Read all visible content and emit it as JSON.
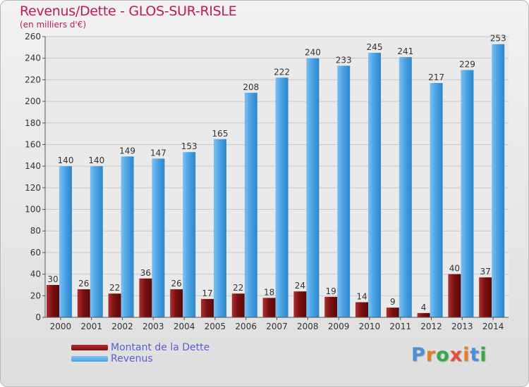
{
  "title": "Revenus/Dette - GLOS-SUR-RISLE",
  "subtitle": "(en milliers d'€)",
  "legend": {
    "debt": "Montant de la Dette",
    "revenue": "Revenus"
  },
  "logo": {
    "text": "Proxiti",
    "letter_colors": [
      "#4a90d9",
      "#e67e22",
      "#3aa84a",
      "#e74c3c",
      "#e67e22",
      "#4a90d9",
      "#3aa84a"
    ]
  },
  "colors": {
    "debt": "#7b1010",
    "debt_light": "#b03030",
    "revenue": "#4aa3e6",
    "revenue_light": "#7dc0f0",
    "label": "#333333",
    "grid": "#c8c8c8"
  },
  "chart_data": {
    "type": "bar",
    "categories": [
      "2000",
      "2001",
      "2002",
      "2003",
      "2004",
      "2005",
      "2006",
      "2007",
      "2008",
      "2009",
      "2010",
      "2011",
      "2012",
      "2013",
      "2014"
    ],
    "series": [
      {
        "name": "Montant de la Dette",
        "values": [
          30,
          26,
          22,
          36,
          26,
          17,
          22,
          18,
          24,
          19,
          14,
          9,
          4,
          40,
          37
        ]
      },
      {
        "name": "Revenus",
        "values": [
          140,
          140,
          149,
          147,
          153,
          165,
          208,
          222,
          240,
          233,
          245,
          241,
          217,
          229,
          253
        ]
      }
    ],
    "ylim": [
      0,
      260
    ],
    "yticks": [
      0,
      20,
      40,
      60,
      80,
      100,
      120,
      140,
      160,
      180,
      200,
      220,
      240,
      260
    ],
    "grid": true,
    "data_labels": true,
    "legend_position": "bottom-left"
  }
}
